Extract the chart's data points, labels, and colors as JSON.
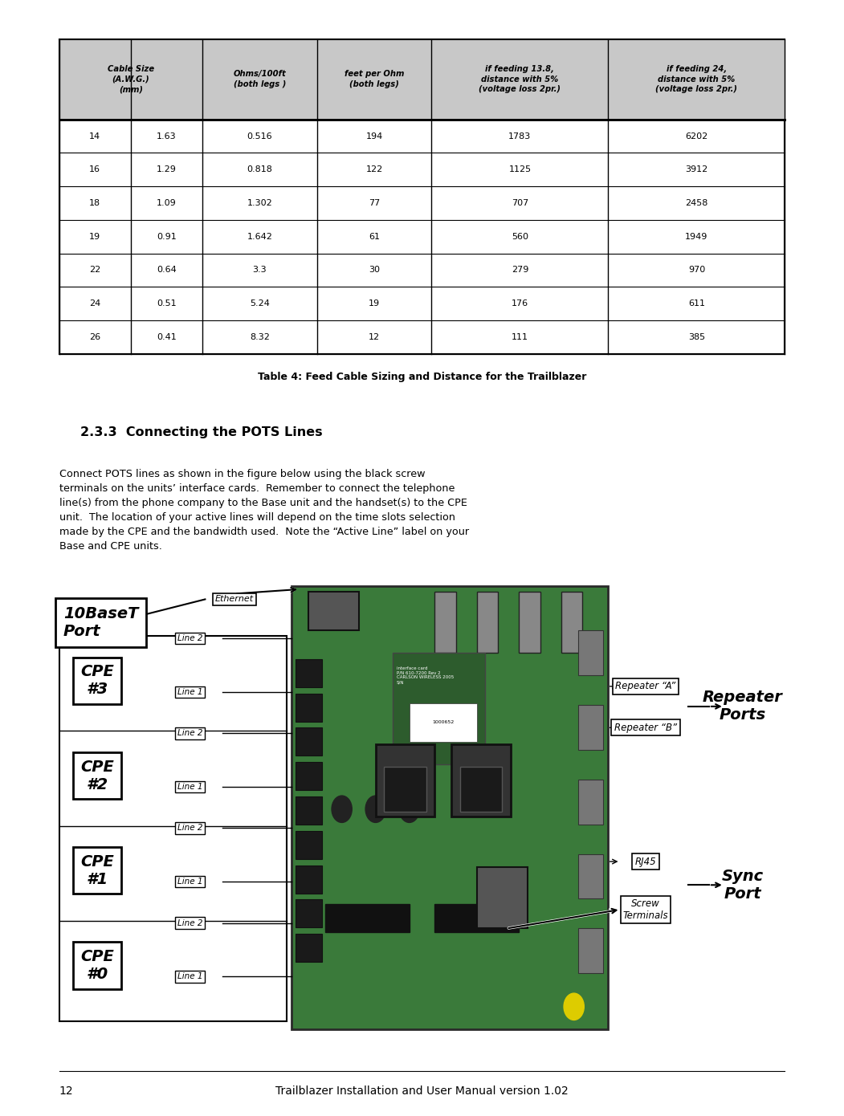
{
  "page_width": 10.51,
  "page_height": 13.9,
  "bg_color": "#ffffff",
  "footer_number": "12",
  "footer_text": "Trailblazer Installation and User Manual version 1.02",
  "table_caption": "Table 4: Feed Cable Sizing and Distance for the Trailblazer",
  "section_heading": "2.3.3  Connecting the POTS Lines",
  "body_text": "Connect POTS lines as shown in the figure below using the black screw\nterminals on the units’ interface cards.  Remember to connect the telephone\nline(s) from the phone company to the Base unit and the handset(s) to the CPE\nunit.  The location of your active lines will depend on the time slots selection\nmade by the CPE and the bandwidth used.  Note the “Active Line” label on your\nBase and CPE units.",
  "col_headers": [
    "Cable Size\n(A.W.G.)\n(mm)",
    "Ohms/100ft\n(both legs )",
    "feet per Ohm\n(both legs)",
    "if feeding 13.8,\ndistance with 5%\n(voltage loss 2pr.)",
    "if feeding 24,\ndistance with 5%\n(voltage loss 2pr.)"
  ],
  "table_data": [
    [
      "14",
      "1.63",
      "0.516",
      "194",
      "1783",
      "6202"
    ],
    [
      "16",
      "1.29",
      "0.818",
      "122",
      "1125",
      "3912"
    ],
    [
      "18",
      "1.09",
      "1.302",
      "77",
      "707",
      "2458"
    ],
    [
      "19",
      "0.91",
      "1.642",
      "61",
      "560",
      "1949"
    ],
    [
      "22",
      "0.64",
      "3.3",
      "30",
      "279",
      "970"
    ],
    [
      "24",
      "0.51",
      "5.24",
      "19",
      "176",
      "611"
    ],
    [
      "26",
      "0.41",
      "8.32",
      "12",
      "111",
      "385"
    ]
  ],
  "diagram_labels": {
    "10BaseT_Port": "10BaseT\nPort",
    "Ethernet": "Ethernet",
    "Repeater_A": "Repeater “A”",
    "Repeater_B": "Repeater “B”",
    "Repeater_Ports": "Repeater\nPorts",
    "Sync_Port": "Sync\nPort",
    "RJ45": "RJ45",
    "Screw_Terminals": "Screw\nTerminals",
    "CPE3": "CPE\n#3",
    "CPE2": "CPE\n#2",
    "CPE1": "CPE\n#1",
    "CPE0": "CPE\n#0",
    "Line2": "Line 2",
    "Line1": "Line 1"
  }
}
